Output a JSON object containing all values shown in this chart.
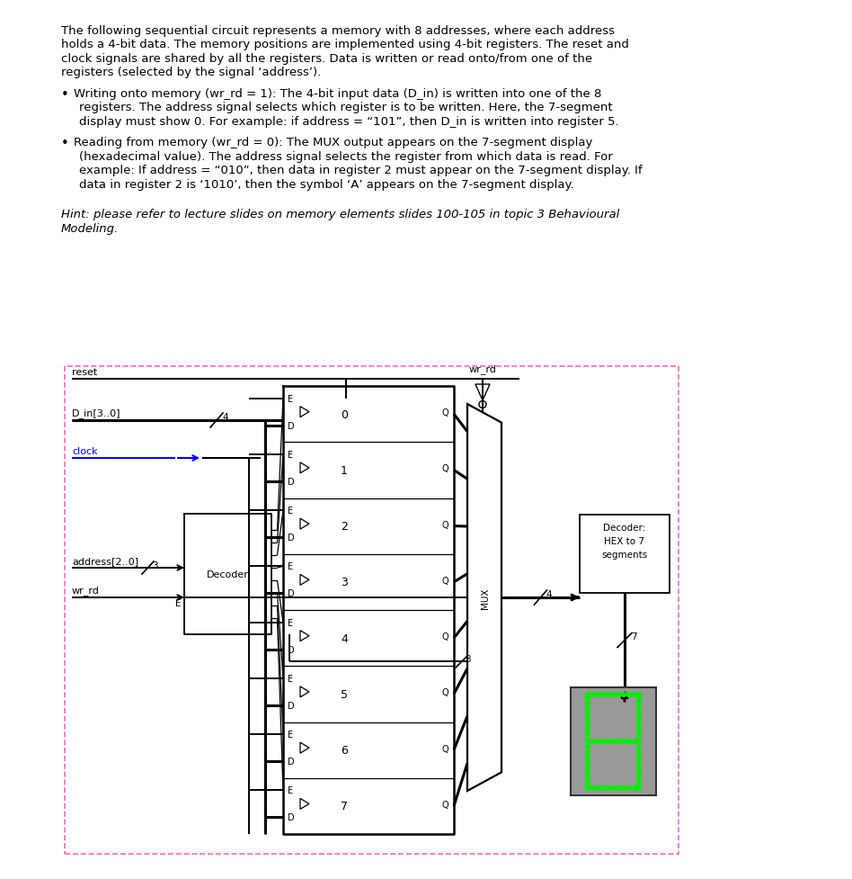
{
  "bg_color": "#ffffff",
  "text_color": "#000000",
  "blue_color": "#0000ff",
  "green_color": "#00ee00",
  "pink_dashed_color": "#ff69b4",
  "paragraph_lines": [
    "The following sequential circuit represents a memory with 8 addresses, where each address",
    "holds a 4-bit data. The memory positions are implemented using 4-bit registers. The reset and",
    "clock signals are shared by all the registers. Data is written or read onto/from one of the",
    "registers (selected by the signal ‘address’)."
  ],
  "bullet1_lines": [
    "Writing onto memory (wr_rd = 1): The 4-bit input data (D_in) is written into one of the 8",
    "registers. The address signal selects which register is to be written. Here, the 7-segment",
    "display must show 0. For example: if address = “101”, then D_in is written into register 5."
  ],
  "bullet2_lines": [
    "Reading from memory (wr_rd = 0): The MUX output appears on the 7-segment display",
    "(hexadecimal value). The address signal selects the register from which data is read. For",
    "example: If address = “010”, then data in register 2 must appear on the 7-segment display. If",
    "data in register 2 is ‘1010’, then the symbol ‘A’ appears on the 7-segment display."
  ],
  "hint_lines": [
    "Hint: please refer to lecture slides on memory elements slides 100-105 in topic 3 Behavioural",
    "Modeling."
  ]
}
